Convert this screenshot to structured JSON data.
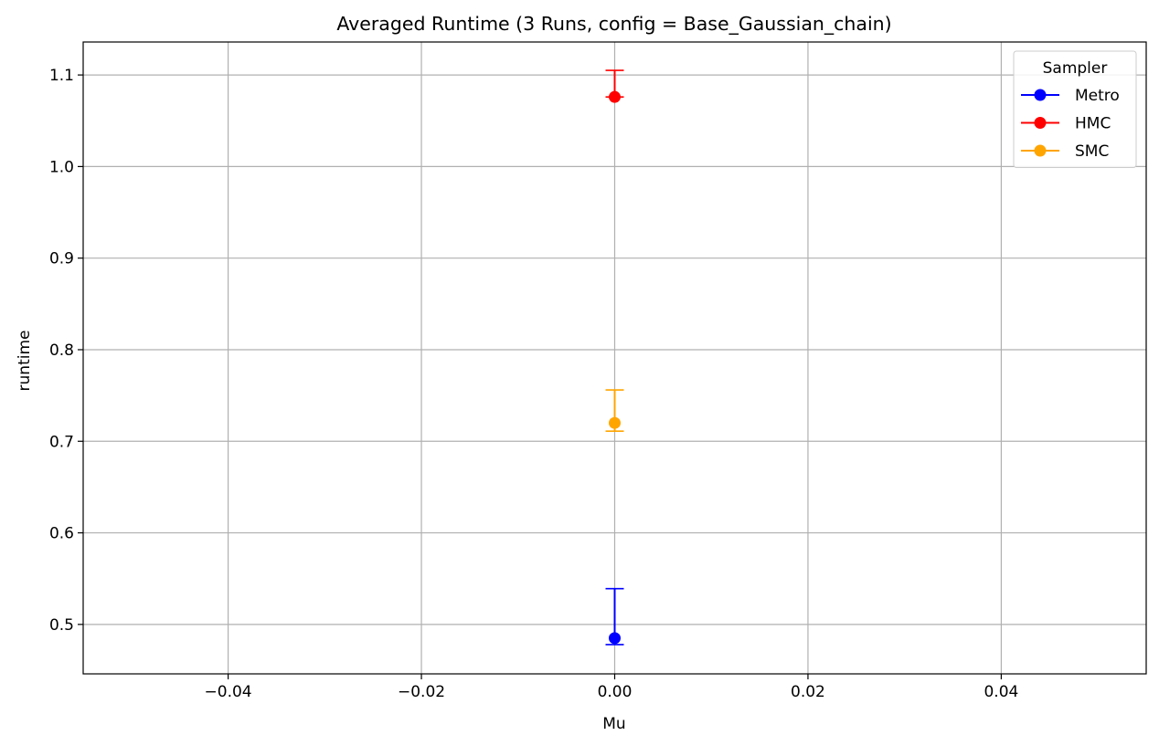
{
  "chart_data": {
    "type": "scatter",
    "title": "Averaged Runtime (3 Runs, config = Base_Gaussian_chain)",
    "xlabel": "Mu",
    "ylabel": "runtime",
    "xlim": [
      -0.055,
      0.055
    ],
    "ylim": [
      0.446,
      1.136
    ],
    "x_ticks": [
      -0.04,
      -0.02,
      0.0,
      0.02,
      0.04
    ],
    "x_tick_labels": [
      "−0.04",
      "−0.02",
      "0.00",
      "0.02",
      "0.04"
    ],
    "y_ticks": [
      0.5,
      0.6,
      0.7,
      0.8,
      0.9,
      1.0,
      1.1
    ],
    "y_tick_labels": [
      "0.5",
      "0.6",
      "0.7",
      "0.8",
      "0.9",
      "1.0",
      "1.1"
    ],
    "grid": true,
    "legend": {
      "title": "Sampler",
      "placement": "top-right"
    },
    "series": [
      {
        "name": "Metro",
        "color": "#0000ff",
        "x": [
          0.0
        ],
        "y": [
          0.485
        ],
        "err_low": [
          0.478
        ],
        "err_high": [
          0.539
        ]
      },
      {
        "name": "HMC",
        "color": "#ff0000",
        "x": [
          0.0
        ],
        "y": [
          1.076
        ],
        "err_low": [
          1.076
        ],
        "err_high": [
          1.105
        ]
      },
      {
        "name": "SMC",
        "color": "#ffa500",
        "x": [
          0.0
        ],
        "y": [
          0.72
        ],
        "err_low": [
          0.711
        ],
        "err_high": [
          0.756
        ]
      }
    ]
  }
}
